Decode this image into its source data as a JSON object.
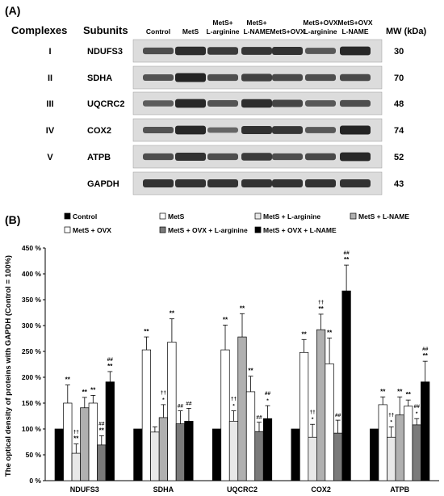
{
  "panel_a": {
    "label": "(A)",
    "col_complexes": "Complexes",
    "col_subunits": "Subunits",
    "col_mw": "MW (kDa)",
    "lanes": [
      [
        "Control"
      ],
      [
        "MetS"
      ],
      [
        "MetS+",
        "L-arginine"
      ],
      [
        "MetS+",
        "L-NAME"
      ],
      [
        "MetS+OVX"
      ],
      [
        "MetS+OVX",
        "L-arginine"
      ],
      [
        "MetS+OVX",
        "L-NAME"
      ]
    ],
    "rows": [
      {
        "complex": "I",
        "subunit": "NDUFS3",
        "mw": "30",
        "intensity": [
          0.55,
          0.9,
          0.75,
          0.8,
          0.85,
          0.45,
          0.95
        ]
      },
      {
        "complex": "II",
        "subunit": "SDHA",
        "mw": "70",
        "intensity": [
          0.5,
          1.0,
          0.55,
          0.7,
          0.6,
          0.55,
          0.6
        ]
      },
      {
        "complex": "III",
        "subunit": "UQCRC2",
        "mw": "48",
        "intensity": [
          0.4,
          0.95,
          0.5,
          0.9,
          0.65,
          0.45,
          0.55
        ]
      },
      {
        "complex": "IV",
        "subunit": "COX2",
        "mw": "74",
        "intensity": [
          0.5,
          0.95,
          0.3,
          0.85,
          0.8,
          0.45,
          1.0
        ]
      },
      {
        "complex": "V",
        "subunit": "ATPB",
        "mw": "52",
        "intensity": [
          0.55,
          0.85,
          0.55,
          0.75,
          0.55,
          0.6,
          0.95
        ]
      },
      {
        "complex": "",
        "subunit": "GAPDH",
        "mw": "43",
        "intensity": [
          0.85,
          0.85,
          0.85,
          0.85,
          0.85,
          0.85,
          0.85
        ]
      }
    ]
  },
  "chart_data": {
    "type": "bar",
    "label": "(B)",
    "ylabel": "The optical density of proteins with GAPDH (Control = 100%)",
    "ylim": [
      0,
      450
    ],
    "yticks": [
      "0 %",
      "50 %",
      "100 %",
      "150 %",
      "200 %",
      "250 %",
      "300 %",
      "350 %",
      "400 %",
      "450 %"
    ],
    "categories": [
      "NDUFS3",
      "SDHA",
      "UQCRC2",
      "COX2",
      "ATPB"
    ],
    "series": [
      {
        "name": "Control",
        "color": "#000000",
        "values": [
          100,
          100,
          100,
          100,
          100
        ],
        "errors": [
          0,
          0,
          0,
          0,
          0
        ]
      },
      {
        "name": "MetS",
        "color": "#ffffff",
        "values": [
          150,
          253,
          253,
          248,
          147
        ],
        "errors": [
          35,
          25,
          48,
          25,
          15
        ]
      },
      {
        "name": "MetS + L-arginine",
        "color": "#e8e8e8",
        "values": [
          53,
          94,
          115,
          84,
          84
        ],
        "errors": [
          18,
          10,
          20,
          25,
          20
        ]
      },
      {
        "name": "MetS + L-NAME",
        "color": "#b0b0b0",
        "values": [
          141,
          122,
          278,
          292,
          127
        ],
        "errors": [
          20,
          25,
          45,
          30,
          35
        ]
      },
      {
        "name": "MetS + OVX",
        "color": "#ffffff",
        "values": [
          150,
          268,
          172,
          226,
          144
        ],
        "errors": [
          15,
          45,
          30,
          50,
          12
        ]
      },
      {
        "name": "MetS + OVX + L-arginine",
        "color": "#7a7a7a",
        "values": [
          69,
          110,
          95,
          92,
          108
        ],
        "errors": [
          18,
          25,
          18,
          25,
          12
        ]
      },
      {
        "name": "MetS + OVX + L-NAME",
        "color": "#000000",
        "values": [
          191,
          115,
          120,
          367,
          191
        ],
        "errors": [
          20,
          25,
          25,
          50,
          40
        ]
      }
    ],
    "annotations": [
      [
        [],
        [
          "**"
        ],
        [
          "††",
          "**"
        ],
        [
          "**"
        ],
        [
          "**"
        ],
        [
          "##",
          "**"
        ],
        [
          "##",
          "**"
        ]
      ],
      [
        [],
        [
          "**"
        ],
        [],
        [
          "††",
          "*"
        ],
        [
          "**"
        ],
        [
          "##"
        ],
        [
          "##"
        ]
      ],
      [
        [],
        [
          "**"
        ],
        [
          "††",
          "*"
        ],
        [
          "**"
        ],
        [
          "**"
        ],
        [
          "##"
        ],
        [
          "##",
          "*"
        ]
      ],
      [
        [],
        [
          "**"
        ],
        [
          "††",
          "*"
        ],
        [
          "††",
          "**"
        ],
        [
          "**"
        ],
        [
          "##"
        ],
        [
          "##",
          "**"
        ]
      ],
      [
        [],
        [
          "**"
        ],
        [
          "††",
          "*"
        ],
        [
          "**"
        ],
        [
          "**"
        ],
        [
          "##",
          "*"
        ],
        [
          "##",
          "**"
        ]
      ]
    ],
    "legend_placement": "top"
  }
}
